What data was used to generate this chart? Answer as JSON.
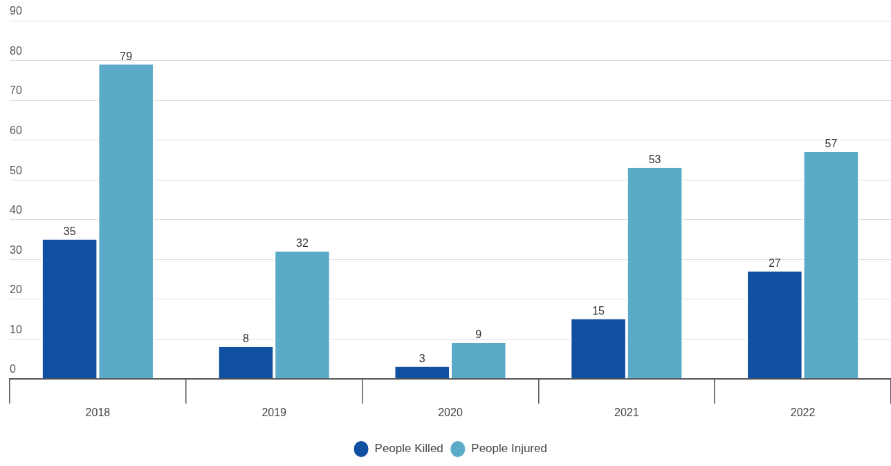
{
  "chart_data": {
    "type": "bar",
    "categories": [
      "2018",
      "2019",
      "2020",
      "2021",
      "2022"
    ],
    "series": [
      {
        "name": "People Killed",
        "color": "#1150a0",
        "values": [
          35,
          8,
          3,
          15,
          27
        ]
      },
      {
        "name": "People Injured",
        "color": "#5aaac8",
        "values": [
          79,
          32,
          9,
          53,
          57
        ]
      }
    ],
    "ylim": [
      0,
      90
    ],
    "yticks": [
      0,
      10,
      20,
      30,
      40,
      50,
      60,
      70,
      80,
      90
    ],
    "grid": "y",
    "legend": "bottom",
    "data_labels": true
  }
}
